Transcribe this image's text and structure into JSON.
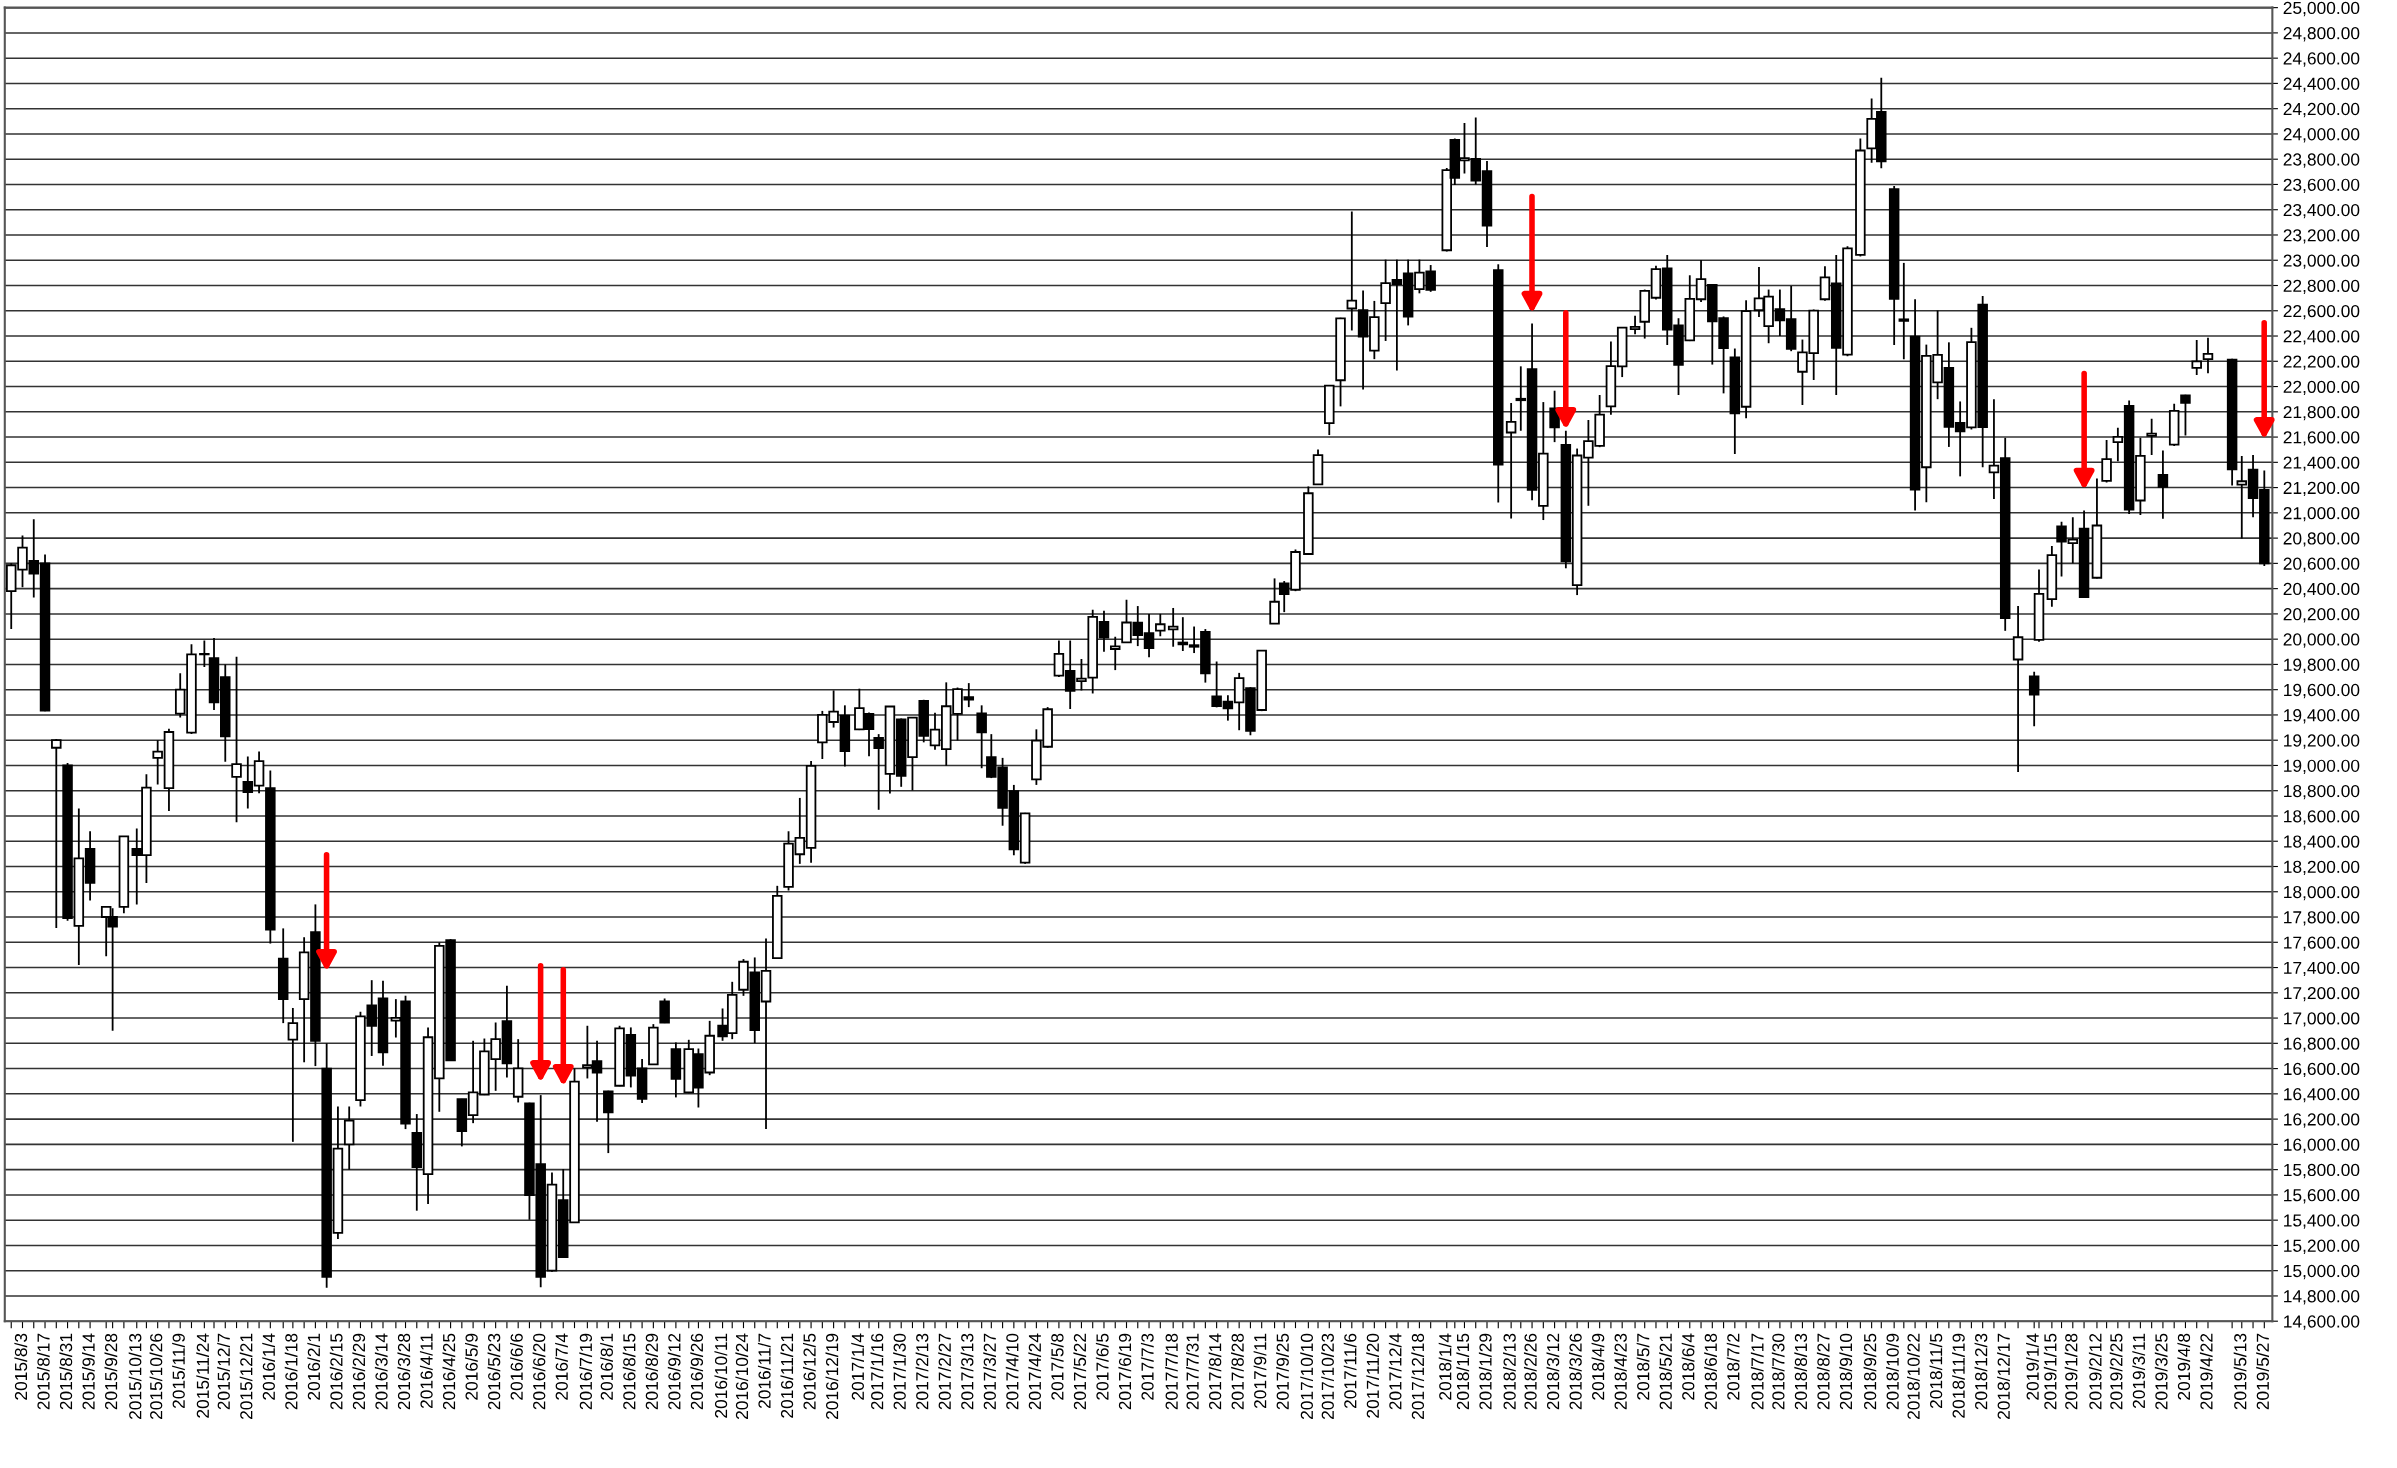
{
  "chart_data": {
    "type": "candlestick",
    "x": [
      "2015-07-27",
      "2015-08-03",
      "2015-08-10",
      "2015-08-17",
      "2015-08-24",
      "2015-08-31",
      "2015-09-07",
      "2015-09-14",
      "2015-09-24",
      "2015-09-28",
      "2015-10-05",
      "2015-10-13",
      "2015-10-19",
      "2015-10-26",
      "2015-11-02",
      "2015-11-09",
      "2015-11-16",
      "2015-11-24",
      "2015-11-30",
      "2015-12-07",
      "2015-12-14",
      "2015-12-21",
      "2015-12-28",
      "2016-01-04",
      "2016-01-12",
      "2016-01-18",
      "2016-01-25",
      "2016-02-01",
      "2016-02-08",
      "2016-02-15",
      "2016-02-22",
      "2016-02-29",
      "2016-03-07",
      "2016-03-14",
      "2016-03-22",
      "2016-03-28",
      "2016-04-04",
      "2016-04-11",
      "2016-04-18",
      "2016-04-25",
      "2016-05-02",
      "2016-05-09",
      "2016-05-16",
      "2016-05-23",
      "2016-05-30",
      "2016-06-06",
      "2016-06-13",
      "2016-06-20",
      "2016-06-27",
      "2016-07-04",
      "2016-07-11",
      "2016-07-19",
      "2016-07-25",
      "2016-08-01",
      "2016-08-08",
      "2016-08-15",
      "2016-08-22",
      "2016-08-29",
      "2016-09-05",
      "2016-09-12",
      "2016-09-20",
      "2016-09-26",
      "2016-10-03",
      "2016-10-11",
      "2016-10-17",
      "2016-10-24",
      "2016-10-31",
      "2016-11-07",
      "2016-11-14",
      "2016-11-21",
      "2016-11-28",
      "2016-12-05",
      "2016-12-12",
      "2016-12-19",
      "2016-12-26",
      "2017-01-04",
      "2017-01-10",
      "2017-01-16",
      "2017-01-23",
      "2017-01-30",
      "2017-02-06",
      "2017-02-13",
      "2017-02-20",
      "2017-02-27",
      "2017-03-06",
      "2017-03-13",
      "2017-03-21",
      "2017-03-27",
      "2017-04-03",
      "2017-04-10",
      "2017-04-17",
      "2017-04-24",
      "2017-05-01",
      "2017-05-08",
      "2017-05-15",
      "2017-05-22",
      "2017-05-29",
      "2017-06-05",
      "2017-06-12",
      "2017-06-19",
      "2017-06-26",
      "2017-07-03",
      "2017-07-10",
      "2017-07-18",
      "2017-07-24",
      "2017-07-31",
      "2017-08-07",
      "2017-08-14",
      "2017-08-21",
      "2017-08-28",
      "2017-09-04",
      "2017-09-11",
      "2017-09-19",
      "2017-09-25",
      "2017-10-02",
      "2017-10-10",
      "2017-10-16",
      "2017-10-23",
      "2017-10-30",
      "2017-11-06",
      "2017-11-13",
      "2017-11-20",
      "2017-11-27",
      "2017-12-04",
      "2017-12-11",
      "2017-12-18",
      "2017-12-25",
      "2018-01-04",
      "2018-01-09",
      "2018-01-15",
      "2018-01-22",
      "2018-01-29",
      "2018-02-05",
      "2018-02-13",
      "2018-02-19",
      "2018-02-26",
      "2018-03-05",
      "2018-03-12",
      "2018-03-19",
      "2018-03-26",
      "2018-04-02",
      "2018-04-09",
      "2018-04-16",
      "2018-04-23",
      "2018-05-01",
      "2018-05-07",
      "2018-05-14",
      "2018-05-21",
      "2018-05-28",
      "2018-06-04",
      "2018-06-11",
      "2018-06-18",
      "2018-06-25",
      "2018-07-02",
      "2018-07-09",
      "2018-07-17",
      "2018-07-23",
      "2018-07-30",
      "2018-08-06",
      "2018-08-13",
      "2018-08-20",
      "2018-08-27",
      "2018-09-03",
      "2018-09-10",
      "2018-09-18",
      "2018-09-25",
      "2018-10-01",
      "2018-10-09",
      "2018-10-15",
      "2018-10-22",
      "2018-10-29",
      "2018-11-05",
      "2018-11-12",
      "2018-11-19",
      "2018-11-26",
      "2018-12-03",
      "2018-12-10",
      "2018-12-17",
      "2018-12-25",
      "2019-01-04",
      "2019-01-07",
      "2019-01-15",
      "2019-01-21",
      "2019-01-28",
      "2019-02-04",
      "2019-02-12",
      "2019-02-18",
      "2019-02-25",
      "2019-03-04",
      "2019-03-11",
      "2019-03-18",
      "2019-03-25",
      "2019-04-01",
      "2019-04-08",
      "2019-04-15",
      "2019-04-22",
      "2019-05-07",
      "2019-05-13",
      "2019-05-20",
      "2019-05-27"
    ],
    "ohlc": [
      [
        20380,
        20600,
        20080,
        20585
      ],
      [
        20550,
        20820,
        20410,
        20724
      ],
      [
        20620,
        20950,
        20330,
        20520
      ],
      [
        20600,
        20670,
        19430,
        19435
      ],
      [
        19140,
        19210,
        17714,
        19200
      ],
      [
        19000,
        19020,
        17770,
        17792
      ],
      [
        17730,
        18660,
        17420,
        18264
      ],
      [
        18340,
        18480,
        17930,
        18070
      ],
      [
        17800,
        17880,
        17490,
        17880
      ],
      [
        17800,
        17870,
        16900,
        17725
      ],
      [
        17880,
        18440,
        17830,
        18438
      ],
      [
        18340,
        18500,
        17900,
        18291
      ],
      [
        18290,
        18930,
        18070,
        18825
      ],
      [
        19060,
        19200,
        18850,
        19110
      ],
      [
        18820,
        19290,
        18640,
        19265
      ],
      [
        19410,
        19730,
        19380,
        19600
      ],
      [
        19260,
        19960,
        19250,
        19880
      ],
      [
        19880,
        19990,
        19780,
        19884
      ],
      [
        19850,
        20010,
        19440,
        19500
      ],
      [
        19700,
        19800,
        19030,
        19230
      ],
      [
        18910,
        19860,
        18550,
        19010
      ],
      [
        18870,
        19070,
        18660,
        18790
      ],
      [
        18840,
        19110,
        18780,
        19035
      ],
      [
        18820,
        18960,
        17590,
        17700
      ],
      [
        17470,
        17710,
        16960,
        17150
      ],
      [
        16830,
        17080,
        16020,
        16960
      ],
      [
        17150,
        17640,
        16650,
        17520
      ],
      [
        17680,
        17900,
        16620,
        16820
      ],
      [
        16600,
        16800,
        14865,
        14952
      ],
      [
        15300,
        16300,
        15250,
        15967
      ],
      [
        16000,
        16300,
        15800,
        16188
      ],
      [
        16350,
        17050,
        16300,
        17014
      ],
      [
        17100,
        17300,
        16700,
        16938
      ],
      [
        17155,
        17295,
        16622,
        16728
      ],
      [
        16980,
        17150,
        16846,
        17002
      ],
      [
        17131,
        17177,
        16121,
        16164
      ],
      [
        16090,
        16240,
        15475,
        15821
      ],
      [
        15765,
        16926,
        15528,
        16848
      ],
      [
        16522,
        17598,
        16258,
        17572
      ],
      [
        17617,
        17625,
        16662,
        16666
      ],
      [
        16358,
        16360,
        15984,
        16106
      ],
      [
        16232,
        16820,
        16168,
        16412
      ],
      [
        16395,
        16838,
        16390,
        16736
      ],
      [
        16675,
        16965,
        16424,
        16834
      ],
      [
        16976,
        17255,
        16530,
        16642
      ],
      [
        16377,
        16833,
        16332,
        16601
      ],
      [
        16324,
        16330,
        15403,
        15599
      ],
      [
        15844,
        16390,
        14868,
        14952
      ],
      [
        15000,
        15778,
        14992,
        15682
      ],
      [
        15559,
        15804,
        15105,
        15107
      ],
      [
        15382,
        16601,
        15380,
        16497
      ],
      [
        16610,
        16939,
        16522,
        16627
      ],
      [
        16659,
        16820,
        16179,
        16569
      ],
      [
        16419,
        16425,
        15931,
        16254
      ],
      [
        16464,
        16939,
        16460,
        16919
      ],
      [
        16867,
        16926,
        16451,
        16545
      ],
      [
        16601,
        16675,
        16327,
        16360
      ],
      [
        16633,
        16952,
        16630,
        16925
      ],
      [
        17131,
        17155,
        16960,
        16965
      ],
      [
        16754,
        16807,
        16372,
        16519
      ],
      [
        16411,
        16828,
        16405,
        16754
      ],
      [
        16715,
        16759,
        16292,
        16449
      ],
      [
        16569,
        16978,
        16548,
        16860
      ],
      [
        16939,
        17076,
        16820,
        16856
      ],
      [
        16881,
        17287,
        16833,
        17184
      ],
      [
        17224,
        17467,
        17176,
        17446
      ],
      [
        17361,
        17480,
        16802,
        16905
      ],
      [
        17131,
        17630,
        16121,
        17374
      ],
      [
        17474,
        18047,
        17470,
        17967
      ],
      [
        18039,
        18479,
        18010,
        18381
      ],
      [
        18297,
        18743,
        18221,
        18426
      ],
      [
        18347,
        19036,
        18230,
        18996
      ],
      [
        19183,
        19432,
        19051,
        19401
      ],
      [
        19344,
        19594,
        19300,
        19427
      ],
      [
        19394,
        19476,
        18992,
        19114
      ],
      [
        19286,
        19608,
        19280,
        19454
      ],
      [
        19409,
        19420,
        19072,
        19287
      ],
      [
        19218,
        19248,
        18649,
        19137
      ],
      [
        18934,
        19470,
        18778,
        19467
      ],
      [
        19365,
        19372,
        18831,
        18918
      ],
      [
        19066,
        19380,
        18802,
        19378
      ],
      [
        19511,
        19520,
        19183,
        19234
      ],
      [
        19159,
        19418,
        19124,
        19283
      ],
      [
        19130,
        19658,
        18998,
        19469
      ],
      [
        19409,
        19617,
        19198,
        19604
      ],
      [
        19541,
        19652,
        19462,
        19521
      ],
      [
        19412,
        19476,
        18978,
        19262
      ],
      [
        19066,
        19248,
        18900,
        18909
      ],
      [
        18984,
        19060,
        18523,
        18665
      ],
      [
        18796,
        18846,
        18289,
        18336
      ],
      [
        18230,
        18625,
        18221,
        18620
      ],
      [
        18890,
        19286,
        18846,
        19196
      ],
      [
        19148,
        19462,
        19140,
        19445
      ],
      [
        19711,
        19989,
        19700,
        19883
      ],
      [
        19749,
        19989,
        19447,
        19590
      ],
      [
        19667,
        19843,
        19594,
        19687
      ],
      [
        19696,
        20233,
        19570,
        20177
      ],
      [
        20136,
        20224,
        19901,
        20013
      ],
      [
        19922,
        20019,
        19755,
        19943
      ],
      [
        19975,
        20312,
        19970,
        20132
      ],
      [
        20130,
        20262,
        19945,
        20033
      ],
      [
        20047,
        20200,
        19856,
        19929
      ],
      [
        20067,
        20200,
        20023,
        20118
      ],
      [
        20077,
        20247,
        19940,
        20099
      ],
      [
        19973,
        20174,
        19906,
        19959
      ],
      [
        19940,
        20100,
        19890,
        19952
      ],
      [
        20057,
        20080,
        19656,
        19729
      ],
      [
        19546,
        19823,
        19460,
        19470
      ],
      [
        19506,
        19556,
        19355,
        19452
      ],
      [
        19500,
        19733,
        19279,
        19691
      ],
      [
        19613,
        19620,
        19239,
        19274
      ],
      [
        19439,
        19910,
        19430,
        19909
      ],
      [
        20123,
        20481,
        20120,
        20296
      ],
      [
        20441,
        20460,
        20214,
        20356
      ],
      [
        20391,
        20710,
        20380,
        20690
      ],
      [
        20674,
        21209,
        20670,
        21155
      ],
      [
        21225,
        21502,
        21220,
        21457
      ],
      [
        21710,
        22010,
        21616,
        22008
      ],
      [
        22050,
        22545,
        21843,
        22539
      ],
      [
        22618,
        23386,
        22444,
        22681
      ],
      [
        22604,
        22761,
        21977,
        22396
      ],
      [
        22284,
        22678,
        22217,
        22550
      ],
      [
        22661,
        23005,
        22361,
        22819
      ],
      [
        22845,
        23005,
        22127,
        22811
      ],
      [
        22895,
        23005,
        22484,
        22553
      ],
      [
        22771,
        23005,
        22738,
        22902
      ],
      [
        22912,
        22962,
        22750,
        22765
      ],
      [
        23079,
        23730,
        23070,
        23714
      ],
      [
        23953,
        23963,
        23596,
        23653
      ],
      [
        23790,
        24087,
        23686,
        23808
      ],
      [
        23803,
        24130,
        23600,
        23631
      ],
      [
        23706,
        23786,
        23105,
        23274
      ],
      [
        22921,
        22968,
        21082,
        21383
      ],
      [
        21636,
        21870,
        20955,
        21720
      ],
      [
        21903,
        22160,
        21650,
        21892
      ],
      [
        22137,
        22499,
        21099,
        21182
      ],
      [
        21056,
        21877,
        20943,
        21469
      ],
      [
        21826,
        21967,
        21560,
        21676
      ],
      [
        21537,
        21650,
        20561,
        20617
      ],
      [
        20428,
        21509,
        20349,
        21454
      ],
      [
        21438,
        21735,
        21056,
        21568
      ],
      [
        21531,
        21933,
        21520,
        21778
      ],
      [
        21843,
        22357,
        21777,
        22162
      ],
      [
        22160,
        22470,
        22075,
        22467
      ],
      [
        22454,
        22561,
        22414,
        22472
      ],
      [
        22513,
        22768,
        22380,
        22758
      ],
      [
        22703,
        22957,
        22690,
        22930
      ],
      [
        22935,
        23042,
        22329,
        22450
      ],
      [
        22485,
        22541,
        21933,
        22171
      ],
      [
        22366,
        22881,
        22360,
        22694
      ],
      [
        22691,
        23002,
        22669,
        22851
      ],
      [
        22805,
        22810,
        22174,
        22516
      ],
      [
        22541,
        22555,
        21946,
        22305
      ],
      [
        22230,
        22301,
        21466,
        21788
      ],
      [
        21840,
        22683,
        21749,
        22597
      ],
      [
        22604,
        22946,
        22550,
        22698
      ],
      [
        22479,
        22768,
        22343,
        22712
      ],
      [
        22612,
        22768,
        22400,
        22525
      ],
      [
        22533,
        22796,
        22280,
        22298
      ],
      [
        22117,
        22372,
        21854,
        22270
      ],
      [
        22264,
        22610,
        22052,
        22601
      ],
      [
        22691,
        22952,
        22680,
        22865
      ],
      [
        22816,
        23042,
        21933,
        22307
      ],
      [
        22253,
        23110,
        22240,
        23094
      ],
      [
        23042,
        23964,
        23030,
        23869
      ],
      [
        23885,
        24281,
        23772,
        24120
      ],
      [
        24174,
        24445,
        23729,
        23783
      ],
      [
        23562,
        23588,
        22329,
        22694
      ],
      [
        22520,
        22979,
        22216,
        22532
      ],
      [
        22396,
        22692,
        21019,
        21184
      ],
      [
        21361,
        22332,
        21084,
        22243
      ],
      [
        22033,
        22602,
        21900,
        22250
      ],
      [
        22148,
        22350,
        21522,
        21680
      ],
      [
        21713,
        21882,
        21289,
        21646
      ],
      [
        21677,
        22465,
        21660,
        22351
      ],
      [
        22648,
        22717,
        21361,
        21679
      ],
      [
        21320,
        21900,
        21109,
        21374
      ],
      [
        21433,
        21594,
        20066,
        20166
      ],
      [
        19839,
        20263,
        18948,
        20015
      ],
      [
        19706,
        19742,
        19310,
        19561
      ],
      [
        19994,
        20551,
        19980,
        20359
      ],
      [
        20317,
        20738,
        20256,
        20666
      ],
      [
        20893,
        20929,
        20497,
        20773
      ],
      [
        20760,
        20965,
        20600,
        20788
      ],
      [
        20875,
        21019,
        20330,
        20333
      ],
      [
        20486,
        21271,
        20480,
        20900
      ],
      [
        21253,
        21577,
        21240,
        21426
      ],
      [
        21560,
        21674,
        21408,
        21602
      ],
      [
        21846,
        21889,
        20990,
        21025
      ],
      [
        21098,
        21595,
        20983,
        21451
      ],
      [
        21609,
        21746,
        21458,
        21627
      ],
      [
        21300,
        21494,
        20954,
        21205
      ],
      [
        21540,
        21864,
        21530,
        21807
      ],
      [
        21929,
        21935,
        21612,
        21870
      ],
      [
        22148,
        22368,
        22091,
        22200
      ],
      [
        22217,
        22386,
        22105,
        22258
      ],
      [
        22213,
        22220,
        21217,
        21344
      ],
      [
        21224,
        21451,
        20796,
        21250
      ],
      [
        21343,
        21458,
        20965,
        21117
      ],
      [
        21181,
        21336,
        20580,
        20601
      ]
    ],
    "xlim": [
      "2015-07-23",
      "2019-06-01"
    ],
    "xticks": [
      {
        "value": "2015-07-27",
        "label": null
      },
      {
        "value": "2015-08-03",
        "label": "2015/8/3"
      },
      {
        "value": "2015-08-10",
        "label": null
      },
      {
        "value": "2015-08-17",
        "label": "2015/8/17"
      },
      {
        "value": "2015-08-24",
        "label": null
      },
      {
        "value": "2015-08-31",
        "label": "2015/8/31"
      },
      {
        "value": "2015-09-07",
        "label": null
      },
      {
        "value": "2015-09-14",
        "label": "2015/9/14"
      },
      {
        "value": "2015-09-24",
        "label": null
      },
      {
        "value": "2015-09-28",
        "label": "2015/9/28"
      },
      {
        "value": "2015-10-05",
        "label": null
      },
      {
        "value": "2015-10-13",
        "label": "2015/10/13"
      },
      {
        "value": "2015-10-19",
        "label": null
      },
      {
        "value": "2015-10-26",
        "label": "2015/10/26"
      },
      {
        "value": "2015-11-02",
        "label": null
      },
      {
        "value": "2015-11-09",
        "label": "2015/11/9"
      },
      {
        "value": "2015-11-16",
        "label": null
      },
      {
        "value": "2015-11-24",
        "label": "2015/11/24"
      },
      {
        "value": "2015-11-30",
        "label": null
      },
      {
        "value": "2015-12-07",
        "label": "2015/12/7"
      },
      {
        "value": "2015-12-14",
        "label": null
      },
      {
        "value": "2015-12-21",
        "label": "2015/12/21"
      },
      {
        "value": "2015-12-28",
        "label": null
      },
      {
        "value": "2016-01-04",
        "label": "2016/1/4"
      },
      {
        "value": "2016-01-12",
        "label": null
      },
      {
        "value": "2016-01-18",
        "label": "2016/1/18"
      },
      {
        "value": "2016-01-25",
        "label": null
      },
      {
        "value": "2016-02-01",
        "label": "2016/2/1"
      },
      {
        "value": "2016-02-08",
        "label": null
      },
      {
        "value": "2016-02-15",
        "label": "2016/2/15"
      },
      {
        "value": "2016-02-22",
        "label": null
      },
      {
        "value": "2016-02-29",
        "label": "2016/2/29"
      },
      {
        "value": "2016-03-07",
        "label": null
      },
      {
        "value": "2016-03-14",
        "label": "2016/3/14"
      },
      {
        "value": "2016-03-22",
        "label": null
      },
      {
        "value": "2016-03-28",
        "label": "2016/3/28"
      },
      {
        "value": "2016-04-04",
        "label": null
      },
      {
        "value": "2016-04-11",
        "label": "2016/4/11"
      },
      {
        "value": "2016-04-18",
        "label": null
      },
      {
        "value": "2016-04-25",
        "label": "2016/4/25"
      },
      {
        "value": "2016-05-02",
        "label": null
      },
      {
        "value": "2016-05-09",
        "label": "2016/5/9"
      },
      {
        "value": "2016-05-16",
        "label": null
      },
      {
        "value": "2016-05-23",
        "label": "2016/5/23"
      },
      {
        "value": "2016-05-30",
        "label": null
      },
      {
        "value": "2016-06-06",
        "label": "2016/6/6"
      },
      {
        "value": "2016-06-13",
        "label": null
      },
      {
        "value": "2016-06-20",
        "label": "2016/6/20"
      },
      {
        "value": "2016-06-27",
        "label": null
      },
      {
        "value": "2016-07-04",
        "label": "2016/7/4"
      },
      {
        "value": "2016-07-11",
        "label": null
      },
      {
        "value": "2016-07-19",
        "label": "2016/7/19"
      },
      {
        "value": "2016-07-25",
        "label": null
      },
      {
        "value": "2016-08-01",
        "label": "2016/8/1"
      },
      {
        "value": "2016-08-08",
        "label": null
      },
      {
        "value": "2016-08-15",
        "label": "2016/8/15"
      },
      {
        "value": "2016-08-22",
        "label": null
      },
      {
        "value": "2016-08-29",
        "label": "2016/8/29"
      },
      {
        "value": "2016-09-05",
        "label": null
      },
      {
        "value": "2016-09-12",
        "label": "2016/9/12"
      },
      {
        "value": "2016-09-20",
        "label": null
      },
      {
        "value": "2016-09-26",
        "label": "2016/9/26"
      },
      {
        "value": "2016-10-03",
        "label": null
      },
      {
        "value": "2016-10-11",
        "label": "2016/10/11"
      },
      {
        "value": "2016-10-17",
        "label": null
      },
      {
        "value": "2016-10-24",
        "label": "2016/10/24"
      },
      {
        "value": "2016-10-31",
        "label": null
      },
      {
        "value": "2016-11-07",
        "label": "2016/11/7"
      },
      {
        "value": "2016-11-14",
        "label": null
      },
      {
        "value": "2016-11-21",
        "label": "2016/11/21"
      },
      {
        "value": "2016-11-28",
        "label": null
      },
      {
        "value": "2016-12-05",
        "label": "2016/12/5"
      },
      {
        "value": "2016-12-12",
        "label": null
      },
      {
        "value": "2016-12-19",
        "label": "2016/12/19"
      },
      {
        "value": "2016-12-26",
        "label": null
      },
      {
        "value": "2017-01-04",
        "label": "2017/1/4"
      },
      {
        "value": "2017-01-10",
        "label": null
      },
      {
        "value": "2017-01-16",
        "label": "2017/1/16"
      },
      {
        "value": "2017-01-23",
        "label": null
      },
      {
        "value": "2017-01-30",
        "label": "2017/1/30"
      },
      {
        "value": "2017-02-06",
        "label": null
      },
      {
        "value": "2017-02-13",
        "label": "2017/2/13"
      },
      {
        "value": "2017-02-20",
        "label": null
      },
      {
        "value": "2017-02-27",
        "label": "2017/2/27"
      },
      {
        "value": "2017-03-06",
        "label": null
      },
      {
        "value": "2017-03-13",
        "label": "2017/3/13"
      },
      {
        "value": "2017-03-21",
        "label": null
      },
      {
        "value": "2017-03-27",
        "label": "2017/3/27"
      },
      {
        "value": "2017-04-03",
        "label": null
      },
      {
        "value": "2017-04-10",
        "label": "2017/4/10"
      },
      {
        "value": "2017-04-17",
        "label": null
      },
      {
        "value": "2017-04-24",
        "label": "2017/4/24"
      },
      {
        "value": "2017-05-01",
        "label": null
      },
      {
        "value": "2017-05-08",
        "label": "2017/5/8"
      },
      {
        "value": "2017-05-15",
        "label": null
      },
      {
        "value": "2017-05-22",
        "label": "2017/5/22"
      },
      {
        "value": "2017-05-29",
        "label": null
      },
      {
        "value": "2017-06-05",
        "label": "2017/6/5"
      },
      {
        "value": "2017-06-12",
        "label": null
      },
      {
        "value": "2017-06-19",
        "label": "2017/6/19"
      },
      {
        "value": "2017-06-26",
        "label": null
      },
      {
        "value": "2017-07-03",
        "label": "2017/7/3"
      },
      {
        "value": "2017-07-10",
        "label": null
      },
      {
        "value": "2017-07-18",
        "label": "2017/7/18"
      },
      {
        "value": "2017-07-24",
        "label": null
      },
      {
        "value": "2017-07-31",
        "label": "2017/7/31"
      },
      {
        "value": "2017-08-07",
        "label": null
      },
      {
        "value": "2017-08-14",
        "label": "2017/8/14"
      },
      {
        "value": "2017-08-21",
        "label": null
      },
      {
        "value": "2017-08-28",
        "label": "2017/8/28"
      },
      {
        "value": "2017-09-04",
        "label": null
      },
      {
        "value": "2017-09-11",
        "label": "2017/9/11"
      },
      {
        "value": "2017-09-19",
        "label": null
      },
      {
        "value": "2017-09-25",
        "label": "2017/9/25"
      },
      {
        "value": "2017-10-02",
        "label": null
      },
      {
        "value": "2017-10-10",
        "label": "2017/10/10"
      },
      {
        "value": "2017-10-16",
        "label": null
      },
      {
        "value": "2017-10-23",
        "label": "2017/10/23"
      },
      {
        "value": "2017-10-30",
        "label": null
      },
      {
        "value": "2017-11-06",
        "label": "2017/11/6"
      },
      {
        "value": "2017-11-13",
        "label": null
      },
      {
        "value": "2017-11-20",
        "label": "2017/11/20"
      },
      {
        "value": "2017-11-27",
        "label": null
      },
      {
        "value": "2017-12-04",
        "label": "2017/12/4"
      },
      {
        "value": "2017-12-11",
        "label": null
      },
      {
        "value": "2017-12-18",
        "label": "2017/12/18"
      },
      {
        "value": "2017-12-25",
        "label": null
      },
      {
        "value": "2018-01-04",
        "label": "2018/1/4"
      },
      {
        "value": "2018-01-09",
        "label": null
      },
      {
        "value": "2018-01-15",
        "label": "2018/1/15"
      },
      {
        "value": "2018-01-22",
        "label": null
      },
      {
        "value": "2018-01-29",
        "label": "2018/1/29"
      },
      {
        "value": "2018-02-05",
        "label": null
      },
      {
        "value": "2018-02-13",
        "label": "2018/2/13"
      },
      {
        "value": "2018-02-19",
        "label": null
      },
      {
        "value": "2018-02-26",
        "label": "2018/2/26"
      },
      {
        "value": "2018-03-05",
        "label": null
      },
      {
        "value": "2018-03-12",
        "label": "2018/3/12"
      },
      {
        "value": "2018-03-19",
        "label": null
      },
      {
        "value": "2018-03-26",
        "label": "2018/3/26"
      },
      {
        "value": "2018-04-02",
        "label": null
      },
      {
        "value": "2018-04-09",
        "label": "2018/4/9"
      },
      {
        "value": "2018-04-16",
        "label": null
      },
      {
        "value": "2018-04-23",
        "label": "2018/4/23"
      },
      {
        "value": "2018-05-01",
        "label": null
      },
      {
        "value": "2018-05-07",
        "label": "2018/5/7"
      },
      {
        "value": "2018-05-14",
        "label": null
      },
      {
        "value": "2018-05-21",
        "label": "2018/5/21"
      },
      {
        "value": "2018-05-28",
        "label": null
      },
      {
        "value": "2018-06-04",
        "label": "2018/6/4"
      },
      {
        "value": "2018-06-11",
        "label": null
      },
      {
        "value": "2018-06-18",
        "label": "2018/6/18"
      },
      {
        "value": "2018-06-25",
        "label": null
      },
      {
        "value": "2018-07-02",
        "label": "2018/7/2"
      },
      {
        "value": "2018-07-09",
        "label": null
      },
      {
        "value": "2018-07-17",
        "label": "2018/7/17"
      },
      {
        "value": "2018-07-23",
        "label": null
      },
      {
        "value": "2018-07-30",
        "label": "2018/7/30"
      },
      {
        "value": "2018-08-06",
        "label": null
      },
      {
        "value": "2018-08-13",
        "label": "2018/8/13"
      },
      {
        "value": "2018-08-20",
        "label": null
      },
      {
        "value": "2018-08-27",
        "label": "2018/8/27"
      },
      {
        "value": "2018-09-03",
        "label": null
      },
      {
        "value": "2018-09-10",
        "label": "2018/9/10"
      },
      {
        "value": "2018-09-18",
        "label": null
      },
      {
        "value": "2018-09-25",
        "label": "2018/9/25"
      },
      {
        "value": "2018-10-01",
        "label": null
      },
      {
        "value": "2018-10-09",
        "label": "2018/10/9"
      },
      {
        "value": "2018-10-15",
        "label": null
      },
      {
        "value": "2018-10-22",
        "label": "2018/10/22"
      },
      {
        "value": "2018-10-29",
        "label": null
      },
      {
        "value": "2018-11-05",
        "label": "2018/11/5"
      },
      {
        "value": "2018-11-12",
        "label": null
      },
      {
        "value": "2018-11-19",
        "label": "2018/11/19"
      },
      {
        "value": "2018-11-26",
        "label": null
      },
      {
        "value": "2018-12-03",
        "label": "2018/12/3"
      },
      {
        "value": "2018-12-10",
        "label": null
      },
      {
        "value": "2018-12-17",
        "label": "2018/12/17"
      },
      {
        "value": "2018-12-25",
        "label": null
      },
      {
        "value": "2019-01-04",
        "label": "2019/1/4"
      },
      {
        "value": "2019-01-07",
        "label": null
      },
      {
        "value": "2019-01-15",
        "label": "2019/1/15"
      },
      {
        "value": "2019-01-21",
        "label": null
      },
      {
        "value": "2019-01-28",
        "label": "2019/1/28"
      },
      {
        "value": "2019-02-04",
        "label": null
      },
      {
        "value": "2019-02-12",
        "label": "2019/2/12"
      },
      {
        "value": "2019-02-18",
        "label": null
      },
      {
        "value": "2019-02-25",
        "label": "2019/2/25"
      },
      {
        "value": "2019-03-04",
        "label": null
      },
      {
        "value": "2019-03-11",
        "label": "2019/3/11"
      },
      {
        "value": "2019-03-18",
        "label": null
      },
      {
        "value": "2019-03-25",
        "label": "2019/3/25"
      },
      {
        "value": "2019-04-01",
        "label": null
      },
      {
        "value": "2019-04-08",
        "label": "2019/4/8"
      },
      {
        "value": "2019-04-15",
        "label": null
      },
      {
        "value": "2019-04-22",
        "label": "2019/4/22"
      },
      {
        "value": "2019-05-07",
        "label": null
      },
      {
        "value": "2019-05-13",
        "label": "2019/5/13"
      },
      {
        "value": "2019-05-20",
        "label": null
      },
      {
        "value": "2019-05-27",
        "label": "2019/5/27"
      }
    ],
    "ylim": [
      14600,
      25000
    ],
    "yticks": [
      {
        "value": 14600,
        "label": "14,600.00"
      },
      {
        "value": 14800,
        "label": "14,800.00"
      },
      {
        "value": 15000,
        "label": "15,000.00"
      },
      {
        "value": 15200,
        "label": "15,200.00"
      },
      {
        "value": 15400,
        "label": "15,400.00"
      },
      {
        "value": 15600,
        "label": "15,600.00"
      },
      {
        "value": 15800,
        "label": "15,800.00"
      },
      {
        "value": 16000,
        "label": "16,000.00"
      },
      {
        "value": 16200,
        "label": "16,200.00"
      },
      {
        "value": 16400,
        "label": "16,400.00"
      },
      {
        "value": 16600,
        "label": "16,600.00"
      },
      {
        "value": 16800,
        "label": "16,800.00"
      },
      {
        "value": 17000,
        "label": "17,000.00"
      },
      {
        "value": 17200,
        "label": "17,200.00"
      },
      {
        "value": 17400,
        "label": "17,400.00"
      },
      {
        "value": 17600,
        "label": "17,600.00"
      },
      {
        "value": 17800,
        "label": "17,800.00"
      },
      {
        "value": 18000,
        "label": "18,000.00"
      },
      {
        "value": 18200,
        "label": "18,200.00"
      },
      {
        "value": 18400,
        "label": "18,400.00"
      },
      {
        "value": 18600,
        "label": "18,600.00"
      },
      {
        "value": 18800,
        "label": "18,800.00"
      },
      {
        "value": 19000,
        "label": "19,000.00"
      },
      {
        "value": 19200,
        "label": "19,200.00"
      },
      {
        "value": 19400,
        "label": "19,400.00"
      },
      {
        "value": 19600,
        "label": "19,600.00"
      },
      {
        "value": 19800,
        "label": "19,800.00"
      },
      {
        "value": 20000,
        "label": "20,000.00"
      },
      {
        "value": 20200,
        "label": "20,200.00"
      },
      {
        "value": 20400,
        "label": "20,400.00"
      },
      {
        "value": 20600,
        "label": "20,600.00"
      },
      {
        "value": 20800,
        "label": "20,800.00"
      },
      {
        "value": 21000,
        "label": "21,000.00"
      },
      {
        "value": 21200,
        "label": "21,200.00"
      },
      {
        "value": 21400,
        "label": "21,400.00"
      },
      {
        "value": 21600,
        "label": "21,600.00"
      },
      {
        "value": 21800,
        "label": "21,800.00"
      },
      {
        "value": 22000,
        "label": "22,000.00"
      },
      {
        "value": 22200,
        "label": "22,200.00"
      },
      {
        "value": 22400,
        "label": "22,400.00"
      },
      {
        "value": 22600,
        "label": "22,600.00"
      },
      {
        "value": 22800,
        "label": "22,800.00"
      },
      {
        "value": 23000,
        "label": "23,000.00"
      },
      {
        "value": 23200,
        "label": "23,200.00"
      },
      {
        "value": 23400,
        "label": "23,400.00"
      },
      {
        "value": 23600,
        "label": "23,600.00"
      },
      {
        "value": 23800,
        "label": "23,800.00"
      },
      {
        "value": 24000,
        "label": "24,000.00"
      },
      {
        "value": 24200,
        "label": "24,200.00"
      },
      {
        "value": 24400,
        "label": "24,400.00"
      },
      {
        "value": 24600,
        "label": "24,600.00"
      },
      {
        "value": 24800,
        "label": "24,800.00"
      },
      {
        "value": 25000,
        "label": "25,000.00"
      }
    ],
    "grid": "y"
  }
}
